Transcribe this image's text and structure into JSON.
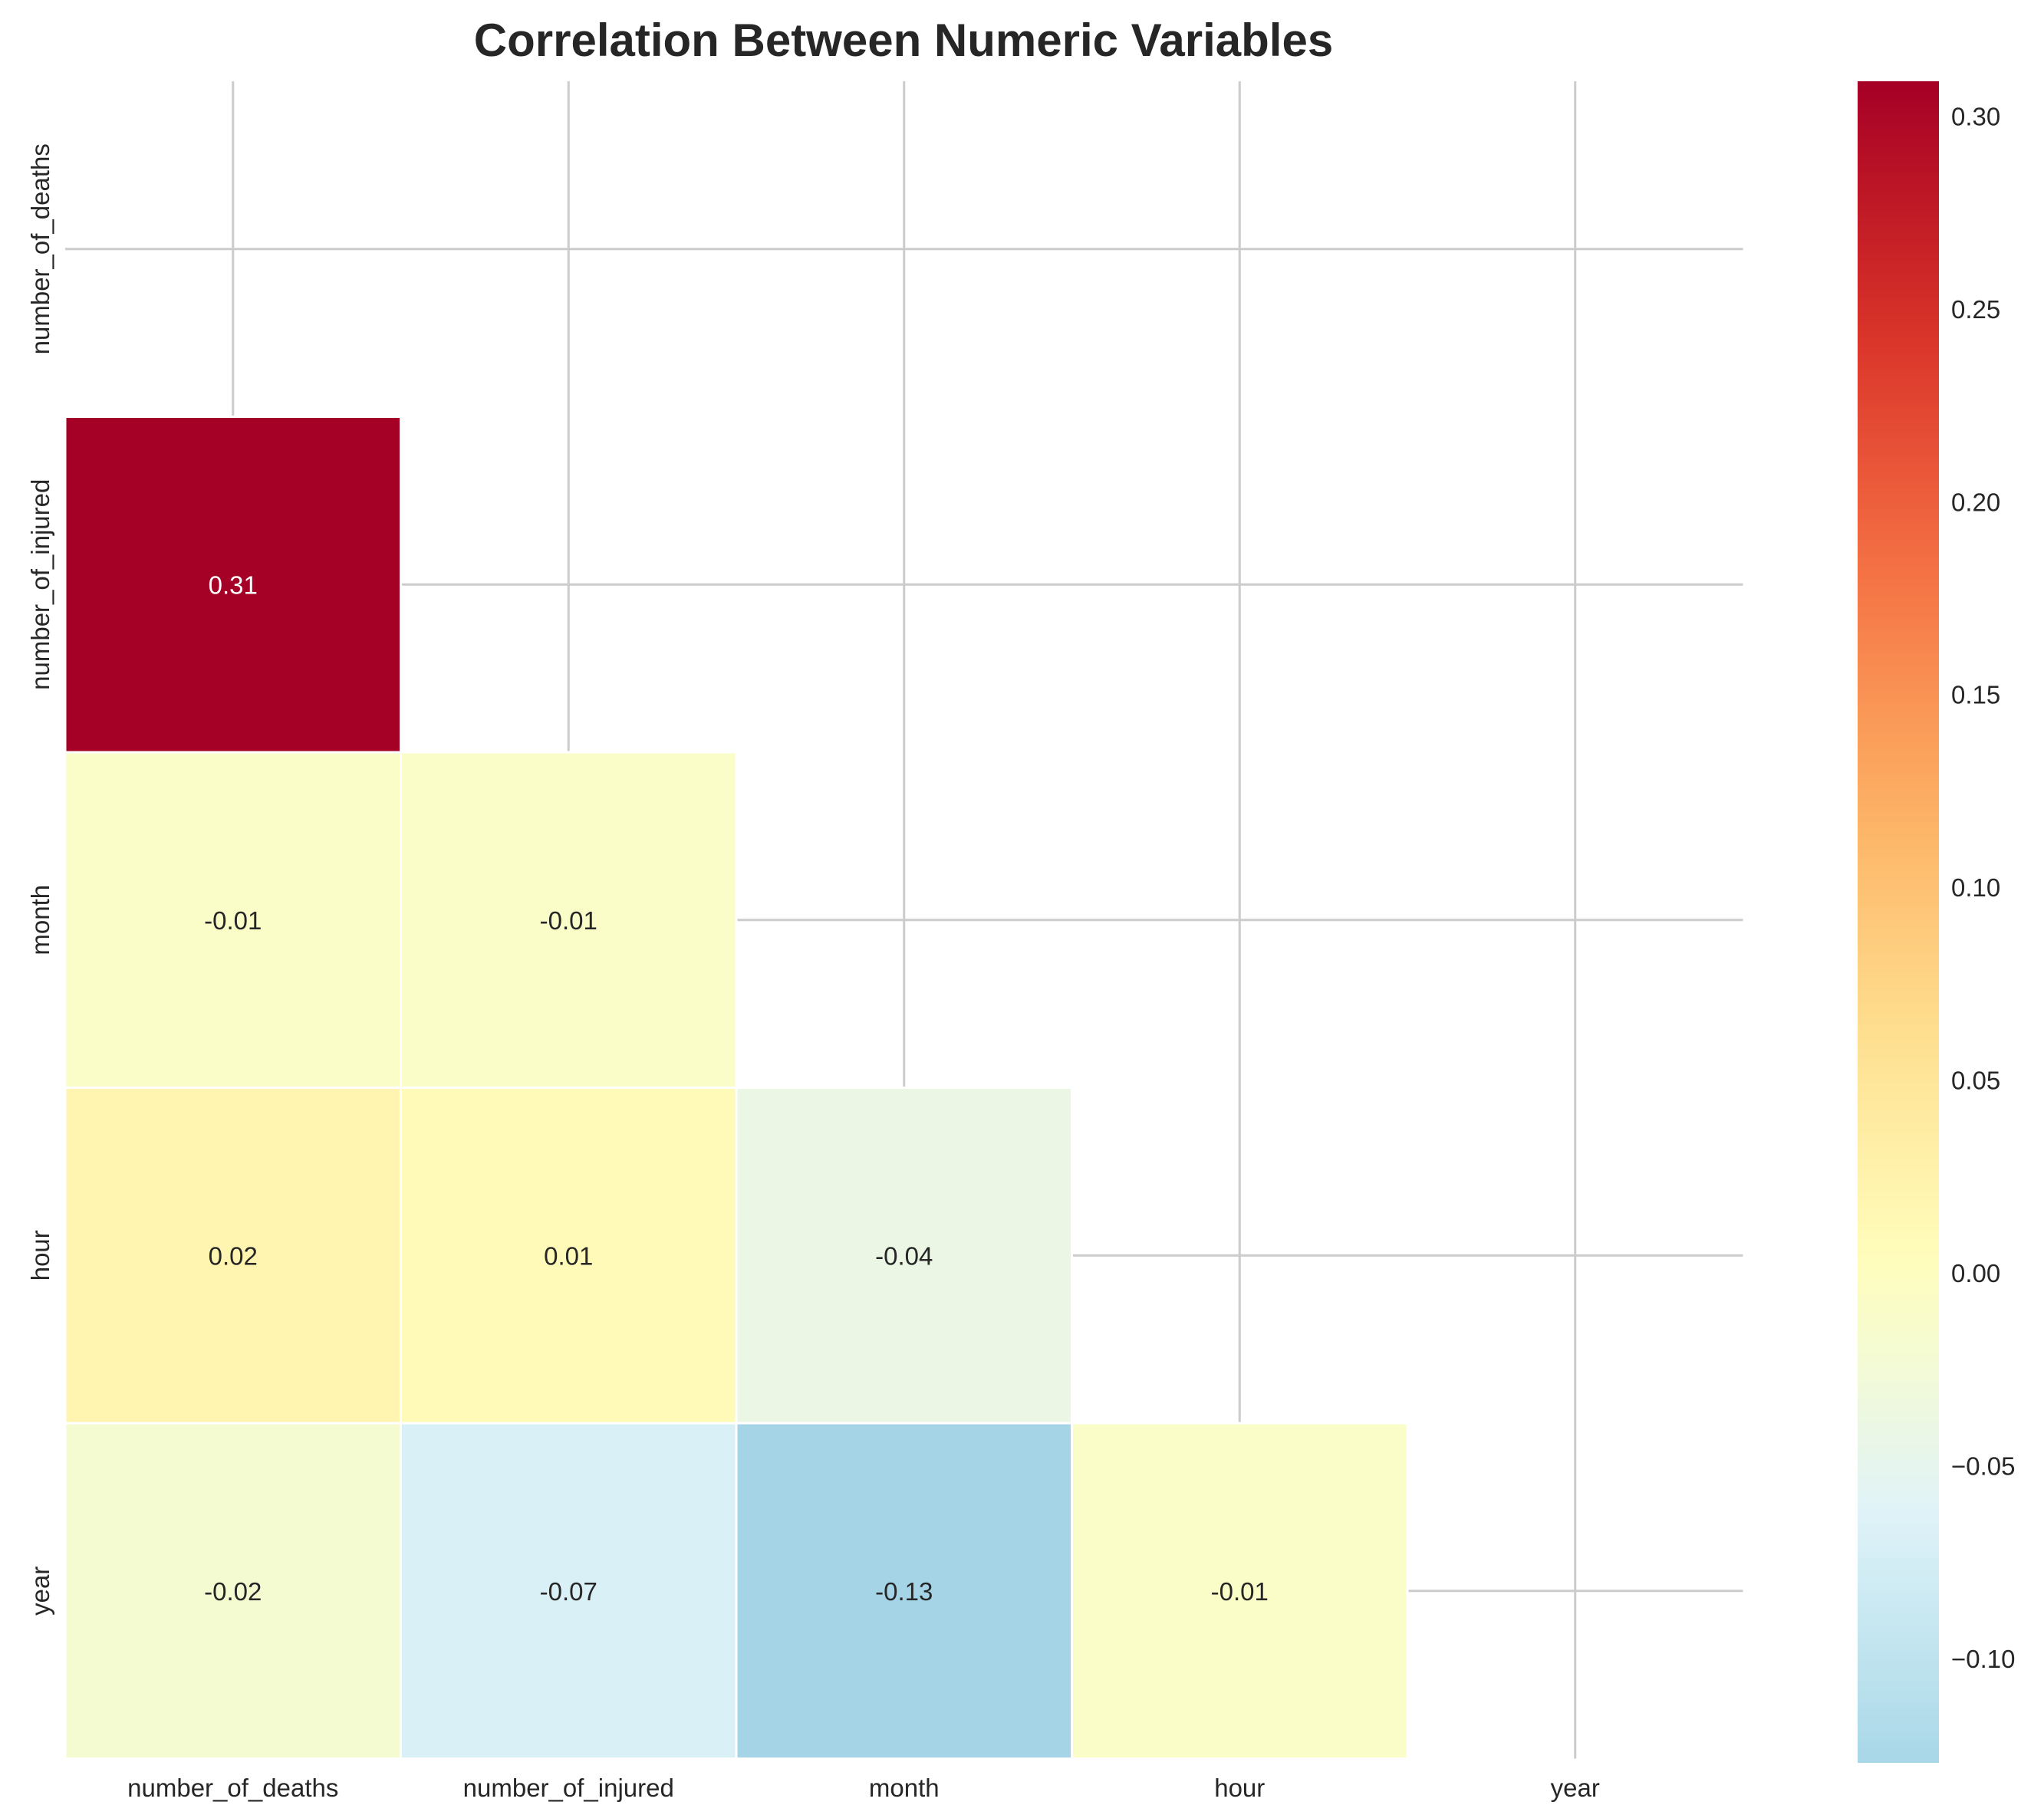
{
  "chart_data": {
    "type": "heatmap",
    "title": "Correlation Between Numeric Variables",
    "x_labels": [
      "number_of_deaths",
      "number_of_injured",
      "month",
      "hour",
      "year"
    ],
    "y_labels": [
      "number_of_deaths",
      "number_of_injured",
      "month",
      "hour",
      "year"
    ],
    "mask": "upper triangle including diagonal",
    "values": [
      [
        null,
        null,
        null,
        null,
        null
      ],
      [
        0.31,
        null,
        null,
        null,
        null
      ],
      [
        -0.01,
        -0.01,
        null,
        null,
        null
      ],
      [
        0.02,
        0.01,
        -0.04,
        null,
        null
      ],
      [
        -0.02,
        -0.07,
        -0.13,
        -0.01,
        null
      ]
    ],
    "value_labels": [
      [
        null,
        null,
        null,
        null,
        null
      ],
      [
        "0.31",
        null,
        null,
        null,
        null
      ],
      [
        "-0.01",
        "-0.01",
        null,
        null,
        null
      ],
      [
        "0.02",
        "0.01",
        "-0.04",
        null,
        null
      ],
      [
        "-0.02",
        "-0.07",
        "-0.13",
        "-0.01",
        null
      ]
    ],
    "colormap": "RdYlBu_r",
    "center": 0,
    "colorbar": {
      "range": [
        -0.127,
        0.309
      ],
      "ticks": [
        0.3,
        0.25,
        0.2,
        0.15,
        0.1,
        0.05,
        0.0,
        -0.05,
        -0.1
      ],
      "tick_labels": [
        "0.30",
        "0.25",
        "0.20",
        "0.15",
        "0.10",
        "0.05",
        "0.00",
        "−0.05",
        "−0.10"
      ]
    },
    "grid": true,
    "colors": {
      "grid": "#cccccc",
      "text_dark": "#262626",
      "text_light": "#ffffff",
      "cell_border": "#ffffff"
    }
  }
}
